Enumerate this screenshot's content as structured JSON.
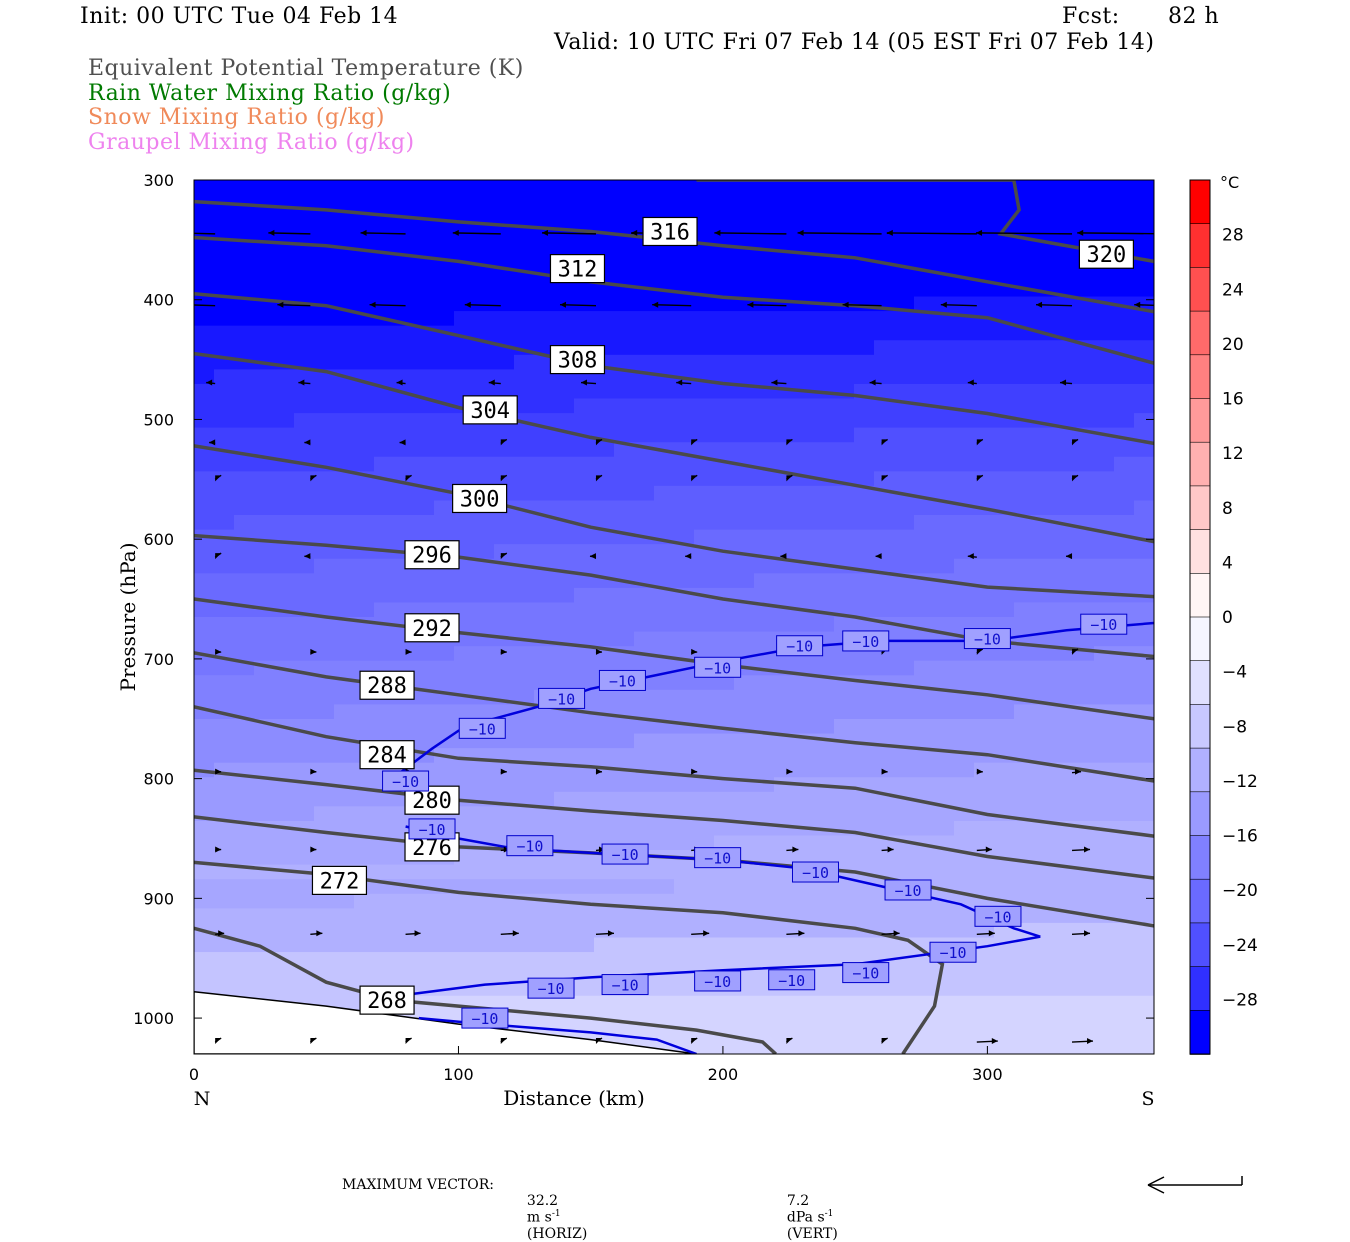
{
  "header": {
    "init": "Init: 00 UTC Tue 04 Feb 14",
    "fcst_label": "Fcst:",
    "fcst_value": "82 h",
    "valid": "Valid: 10 UTC Fri 07 Feb 14 (05 EST Fri 07 Feb 14)"
  },
  "legend": [
    {
      "label": "Equivalent Potential Temperature (K)",
      "color": "#505050"
    },
    {
      "label": "Rain Water Mixing Ratio (g/kg)",
      "color": "#007a00"
    },
    {
      "label": "Snow Mixing Ratio (g/kg)",
      "color": "#f08a5a"
    },
    {
      "label": "Graupel Mixing Ratio (g/kg)",
      "color": "#ee82ee"
    }
  ],
  "footer": {
    "max_vector_label": "MAXIMUM VECTOR:",
    "horiz_value": "32.2",
    "horiz_unit": "m s",
    "horiz_exp": "-1",
    "horiz_tag": "(HORIZ)",
    "vert_value": "7.2",
    "vert_unit": "dPa s",
    "vert_exp": "-1",
    "vert_tag": "(VERT)"
  },
  "chart_data": {
    "type": "cross-section",
    "xlabel": "Distance (km)",
    "ylabel": "Pressure (hPa)",
    "x_range": [
      0,
      363
    ],
    "x_ticks": [
      0,
      100,
      200,
      300
    ],
    "x_end_labels": {
      "left": "N",
      "right": "S"
    },
    "y_range": [
      300,
      1030
    ],
    "y_ticks": [
      300,
      400,
      500,
      600,
      700,
      800,
      900,
      1000
    ],
    "y_scale": "linear-pressure",
    "colorbar": {
      "unit": "°C",
      "labels": [
        28,
        24,
        20,
        16,
        12,
        8,
        4,
        0,
        -4,
        -8,
        -12,
        -16,
        -20,
        -24,
        -28
      ],
      "colors": [
        "#ff0000",
        "#ff3030",
        "#ff5050",
        "#ff6a6a",
        "#ff8080",
        "#ff9a9a",
        "#ffb0b0",
        "#ffc8c8",
        "#ffe0e0",
        "#fff5f5",
        "#f5f5ff",
        "#e0e0ff",
        "#c8c8ff",
        "#b0b0ff",
        "#9a9aff",
        "#8080ff",
        "#6a6aff",
        "#5050ff",
        "#3030ff",
        "#0000ff"
      ]
    },
    "temperature_fill": [
      {
        "min": -36,
        "max": -30,
        "color": "#0000ff"
      },
      {
        "min": -30,
        "max": -28,
        "color": "#1818ff"
      },
      {
        "min": -28,
        "max": -26,
        "color": "#3030ff"
      },
      {
        "min": -26,
        "max": -24,
        "color": "#4040ff"
      },
      {
        "min": -24,
        "max": -22,
        "color": "#5050ff"
      },
      {
        "min": -22,
        "max": -20,
        "color": "#5e5eff"
      },
      {
        "min": -20,
        "max": -18,
        "color": "#6a6aff"
      },
      {
        "min": -18,
        "max": -16,
        "color": "#7676ff"
      },
      {
        "min": -16,
        "max": -14,
        "color": "#8080ff"
      },
      {
        "min": -14,
        "max": -12,
        "color": "#8c8cff"
      },
      {
        "min": -12,
        "max": -10,
        "color": "#9a9aff"
      },
      {
        "min": -10,
        "max": -8,
        "color": "#a6a6ff"
      },
      {
        "min": -8,
        "max": -6,
        "color": "#b0b0ff"
      },
      {
        "min": -6,
        "max": -4,
        "color": "#c4c4ff"
      },
      {
        "min": -4,
        "max": -2,
        "color": "#d4d4ff"
      },
      {
        "min": -2,
        "max": 0,
        "color": "#e2e2ff"
      }
    ],
    "theta_e_contours": [
      {
        "value": 268,
        "label_at": [
          73,
          985
        ],
        "points": [
          [
            0,
            925
          ],
          [
            25,
            940
          ],
          [
            50,
            970
          ],
          [
            75,
            985
          ],
          [
            100,
            990
          ],
          [
            150,
            1000
          ],
          [
            190,
            1010
          ],
          [
            215,
            1020
          ],
          [
            220,
            1030
          ]
        ]
      },
      {
        "value": 272,
        "label_at": [
          55,
          885
        ],
        "points": [
          [
            0,
            870
          ],
          [
            50,
            880
          ],
          [
            100,
            895
          ],
          [
            150,
            905
          ],
          [
            200,
            912
          ],
          [
            250,
            925
          ],
          [
            270,
            935
          ],
          [
            283,
            955
          ],
          [
            280,
            990
          ],
          [
            268,
            1030
          ]
        ]
      },
      {
        "value": 276,
        "label_at": [
          90,
          857
        ],
        "points": [
          [
            0,
            832
          ],
          [
            50,
            845
          ],
          [
            100,
            857
          ],
          [
            150,
            862
          ],
          [
            200,
            868
          ],
          [
            250,
            878
          ],
          [
            300,
            900
          ],
          [
            363,
            923
          ]
        ]
      },
      {
        "value": 280,
        "label_at": [
          90,
          818
        ],
        "points": [
          [
            0,
            793
          ],
          [
            50,
            805
          ],
          [
            100,
            818
          ],
          [
            150,
            827
          ],
          [
            200,
            835
          ],
          [
            250,
            845
          ],
          [
            300,
            865
          ],
          [
            363,
            883
          ]
        ]
      },
      {
        "value": 284,
        "label_at": [
          73,
          780
        ],
        "points": [
          [
            0,
            740
          ],
          [
            50,
            765
          ],
          [
            100,
            783
          ],
          [
            150,
            790
          ],
          [
            200,
            800
          ],
          [
            250,
            808
          ],
          [
            300,
            830
          ],
          [
            363,
            848
          ]
        ]
      },
      {
        "value": 288,
        "label_at": [
          73,
          722
        ],
        "points": [
          [
            0,
            695
          ],
          [
            50,
            715
          ],
          [
            100,
            730
          ],
          [
            150,
            745
          ],
          [
            200,
            758
          ],
          [
            250,
            770
          ],
          [
            300,
            780
          ],
          [
            363,
            802
          ]
        ]
      },
      {
        "value": 292,
        "label_at": [
          90,
          674
        ],
        "points": [
          [
            0,
            650
          ],
          [
            50,
            665
          ],
          [
            100,
            678
          ],
          [
            150,
            690
          ],
          [
            200,
            705
          ],
          [
            250,
            718
          ],
          [
            300,
            730
          ],
          [
            363,
            750
          ]
        ]
      },
      {
        "value": 296,
        "label_at": [
          90,
          613
        ],
        "points": [
          [
            0,
            597
          ],
          [
            50,
            605
          ],
          [
            100,
            615
          ],
          [
            150,
            630
          ],
          [
            200,
            650
          ],
          [
            250,
            665
          ],
          [
            300,
            685
          ],
          [
            363,
            698
          ]
        ]
      },
      {
        "value": 300,
        "label_at": [
          108,
          566
        ],
        "points": [
          [
            0,
            522
          ],
          [
            50,
            540
          ],
          [
            100,
            562
          ],
          [
            150,
            590
          ],
          [
            200,
            610
          ],
          [
            250,
            625
          ],
          [
            300,
            640
          ],
          [
            363,
            648
          ]
        ]
      },
      {
        "value": 304,
        "label_at": [
          112,
          492
        ],
        "points": [
          [
            0,
            445
          ],
          [
            50,
            460
          ],
          [
            100,
            490
          ],
          [
            150,
            515
          ],
          [
            200,
            535
          ],
          [
            250,
            555
          ],
          [
            300,
            575
          ],
          [
            363,
            602
          ]
        ]
      },
      {
        "value": 308,
        "label_at": [
          145,
          450
        ],
        "points": [
          [
            0,
            395
          ],
          [
            50,
            405
          ],
          [
            100,
            430
          ],
          [
            150,
            455
          ],
          [
            200,
            470
          ],
          [
            250,
            480
          ],
          [
            300,
            495
          ],
          [
            363,
            520
          ]
        ]
      },
      {
        "value": 312,
        "label_at": [
          145,
          374
        ],
        "points": [
          [
            0,
            348
          ],
          [
            50,
            355
          ],
          [
            100,
            368
          ],
          [
            150,
            385
          ],
          [
            200,
            398
          ],
          [
            250,
            405
          ],
          [
            300,
            415
          ],
          [
            363,
            453
          ]
        ]
      },
      {
        "value": 316,
        "label_at": [
          180,
          343
        ],
        "points": [
          [
            0,
            318
          ],
          [
            50,
            325
          ],
          [
            100,
            335
          ],
          [
            150,
            343
          ],
          [
            200,
            355
          ],
          [
            250,
            365
          ],
          [
            300,
            385
          ],
          [
            363,
            410
          ]
        ]
      },
      {
        "value": 320,
        "label_at": [
          345,
          362
        ],
        "points": [
          [
            190,
            300
          ],
          [
            300,
            300
          ],
          [
            310,
            300
          ],
          [
            312,
            325
          ],
          [
            305,
            345
          ],
          [
            363,
            368
          ]
        ]
      }
    ],
    "temperature_contours": [
      {
        "value": -10,
        "label_text": "−10",
        "points": [
          [
            75,
            800
          ],
          [
            90,
            775
          ],
          [
            100,
            760
          ],
          [
            110,
            752
          ],
          [
            130,
            740
          ],
          [
            150,
            725
          ],
          [
            165,
            718
          ],
          [
            200,
            702
          ],
          [
            230,
            690
          ],
          [
            260,
            685
          ],
          [
            300,
            685
          ],
          [
            330,
            676
          ],
          [
            363,
            670
          ]
        ],
        "labels_at": [
          [
            80,
            802
          ],
          [
            109,
            758
          ],
          [
            139,
            733
          ],
          [
            162,
            718
          ],
          [
            198,
            707
          ],
          [
            229,
            689
          ],
          [
            254,
            685
          ],
          [
            300,
            683
          ],
          [
            344,
            671
          ]
        ]
      },
      {
        "value": -10,
        "label_text": "−10",
        "points": [
          [
            80,
            840
          ],
          [
            100,
            850
          ],
          [
            120,
            858
          ],
          [
            150,
            862
          ],
          [
            200,
            868
          ],
          [
            230,
            875
          ],
          [
            260,
            890
          ],
          [
            290,
            905
          ],
          [
            310,
            925
          ],
          [
            320,
            932
          ]
        ],
        "labels_at": [
          [
            90,
            842
          ],
          [
            127,
            856
          ],
          [
            163,
            863
          ],
          [
            198,
            866
          ],
          [
            235,
            878
          ],
          [
            270,
            893
          ],
          [
            304,
            915
          ]
        ]
      },
      {
        "value": -10,
        "label_text": "−10",
        "points": [
          [
            82,
            980
          ],
          [
            110,
            972
          ],
          [
            150,
            966
          ],
          [
            200,
            960
          ],
          [
            250,
            955
          ],
          [
            300,
            940
          ],
          [
            320,
            932
          ]
        ],
        "labels_at": [
          [
            135,
            975
          ],
          [
            163,
            972
          ],
          [
            198,
            969
          ],
          [
            226,
            968
          ],
          [
            254,
            962
          ],
          [
            287,
            945
          ]
        ]
      },
      {
        "value": -10,
        "label_text": "−10",
        "points": [
          [
            85,
            1000
          ],
          [
            110,
            1005
          ],
          [
            150,
            1012
          ],
          [
            175,
            1018
          ],
          [
            190,
            1030
          ]
        ],
        "labels_at": [
          [
            110,
            1000
          ]
        ]
      }
    ],
    "terrain": {
      "points": [
        [
          0,
          978
        ],
        [
          50,
          990
        ],
        [
          100,
          1005
        ],
        [
          150,
          1018
        ],
        [
          190,
          1030
        ],
        [
          0,
          1030
        ]
      ]
    },
    "wind_vectors": {
      "spacing_km": 36,
      "levels": [
        {
          "p": 345,
          "u": [
            -12,
            -14,
            -15,
            -16,
            -18,
            -20,
            -24,
            -28,
            -30,
            -32,
            -30
          ]
        },
        {
          "p": 405,
          "u": [
            -10,
            -11,
            -12,
            -12,
            -12,
            -13,
            -13,
            -13,
            -12,
            -12,
            -11
          ]
        },
        {
          "p": 470,
          "u": [
            -3,
            -4,
            -3,
            -4,
            -5,
            -5,
            -5,
            -4,
            -3,
            -4,
            -3
          ]
        },
        {
          "p": 520,
          "u": [
            -2,
            -1,
            -1,
            0,
            0,
            0,
            0,
            0,
            0,
            0,
            0
          ]
        },
        {
          "p": 550,
          "u": [
            0,
            0,
            0,
            0,
            0,
            0,
            0,
            0,
            0,
            0,
            0
          ]
        },
        {
          "p": 615,
          "u": [
            0,
            -1,
            0,
            0,
            -1,
            -1,
            -2,
            -2,
            -3,
            -2,
            -2
          ]
        },
        {
          "p": 695,
          "u": [
            1,
            2,
            2,
            2,
            2,
            1,
            1,
            0,
            0,
            0,
            0
          ]
        },
        {
          "p": 795,
          "u": [
            1,
            1,
            1,
            1,
            2,
            2,
            2,
            2,
            2,
            3,
            3
          ]
        },
        {
          "p": 860,
          "u": [
            2,
            2,
            3,
            3,
            3,
            3,
            4,
            4,
            5,
            6,
            6
          ]
        },
        {
          "p": 930,
          "u": [
            3,
            4,
            5,
            6,
            6,
            6,
            6,
            6,
            6,
            6,
            7
          ]
        },
        {
          "p": 1020,
          "u": [
            0,
            0,
            0,
            0,
            0,
            0,
            0,
            0,
            7,
            7,
            7
          ]
        }
      ]
    }
  }
}
